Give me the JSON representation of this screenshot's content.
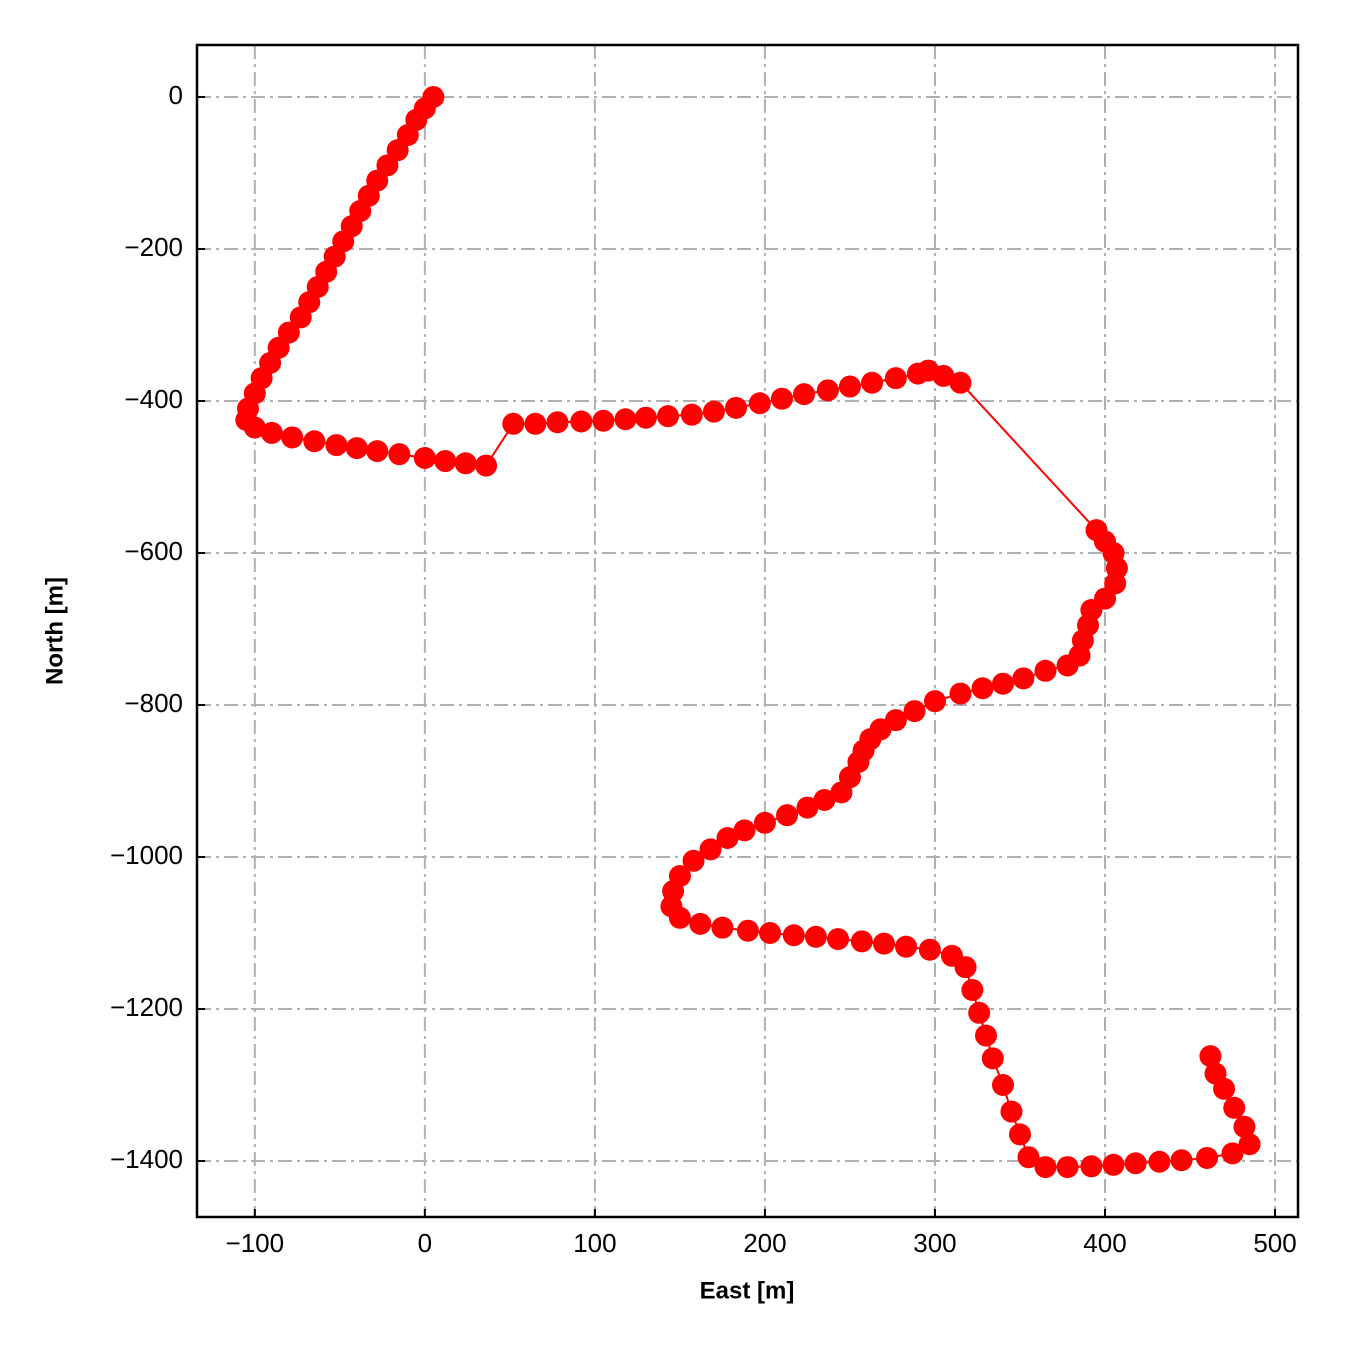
{
  "chart_data": {
    "type": "line",
    "xlabel": "East [m]",
    "ylabel": "North [m]",
    "color": "#ff0000",
    "grid": true,
    "xlim": [
      -134,
      513.5
    ],
    "ylim": [
      -1473.7,
      68.4
    ],
    "xticks": [
      {
        "value": -100,
        "label": "−100"
      },
      0,
      100,
      200,
      300,
      400,
      500
    ],
    "yticks": [
      0,
      {
        "value": -200,
        "label": "−200"
      },
      {
        "value": -400,
        "label": "−400"
      },
      {
        "value": -600,
        "label": "−600"
      },
      {
        "value": -800,
        "label": "−800"
      },
      {
        "value": -1000,
        "label": "−1000"
      },
      {
        "value": -1200,
        "label": "−1200"
      },
      {
        "value": -1400,
        "label": "−1400"
      }
    ],
    "x": [
      5,
      0,
      -5,
      -10,
      -16,
      -22,
      -28,
      -33,
      -38,
      -43,
      -48,
      -53,
      -58,
      -63,
      -68,
      -73,
      -80,
      -86,
      -91,
      -96,
      -100,
      -104,
      -105,
      -100,
      -90,
      -78,
      -65,
      -52,
      -40,
      -28,
      -15,
      0,
      12,
      24,
      36,
      52,
      65,
      78,
      92,
      105,
      118,
      130,
      143,
      157,
      170,
      183,
      197,
      210,
      223,
      237,
      250,
      263,
      277,
      290,
      296,
      305,
      315,
      395,
      400,
      405,
      407,
      406,
      400,
      392,
      390,
      387,
      385,
      378,
      365,
      352,
      340,
      328,
      315,
      300,
      288,
      277,
      268,
      262,
      258,
      255,
      250,
      245,
      235,
      225,
      213,
      200,
      188,
      178,
      168,
      158,
      150,
      146,
      145,
      150,
      162,
      175,
      190,
      203,
      217,
      230,
      243,
      257,
      270,
      283,
      297,
      310,
      318,
      322,
      326,
      330,
      334,
      340,
      345,
      350,
      355,
      365,
      378,
      392,
      405,
      418,
      432,
      445,
      460,
      475,
      485,
      482,
      476,
      470,
      465,
      462
    ],
    "values": [
      0,
      -15,
      -30,
      -50,
      -70,
      -90,
      -110,
      -130,
      -150,
      -170,
      -190,
      -210,
      -230,
      -250,
      -270,
      -290,
      -310,
      -330,
      -350,
      -370,
      -390,
      -410,
      -425,
      -435,
      -442,
      -448,
      -453,
      -458,
      -462,
      -466,
      -470,
      -475,
      -479,
      -482,
      -485,
      -430,
      -430,
      -428,
      -427,
      -426,
      -424,
      -422,
      -420,
      -418,
      -414,
      -409,
      -403,
      -397,
      -391,
      -386,
      -381,
      -376,
      -370,
      -364,
      -360,
      -367,
      -376,
      -570,
      -585,
      -600,
      -620,
      -640,
      -660,
      -675,
      -695,
      -715,
      -735,
      -748,
      -755,
      -765,
      -772,
      -778,
      -785,
      -795,
      -808,
      -820,
      -832,
      -845,
      -860,
      -875,
      -895,
      -915,
      -925,
      -935,
      -945,
      -955,
      -965,
      -975,
      -990,
      -1005,
      -1025,
      -1045,
      -1065,
      -1080,
      -1088,
      -1093,
      -1097,
      -1100,
      -1103,
      -1105,
      -1108,
      -1111,
      -1114,
      -1118,
      -1122,
      -1130,
      -1145,
      -1175,
      -1205,
      -1235,
      -1265,
      -1300,
      -1335,
      -1365,
      -1395,
      -1408,
      -1408,
      -1407,
      -1405,
      -1403,
      -1401,
      -1399,
      -1396,
      -1390,
      -1378,
      -1355,
      -1330,
      -1305,
      -1285,
      -1262
    ]
  }
}
